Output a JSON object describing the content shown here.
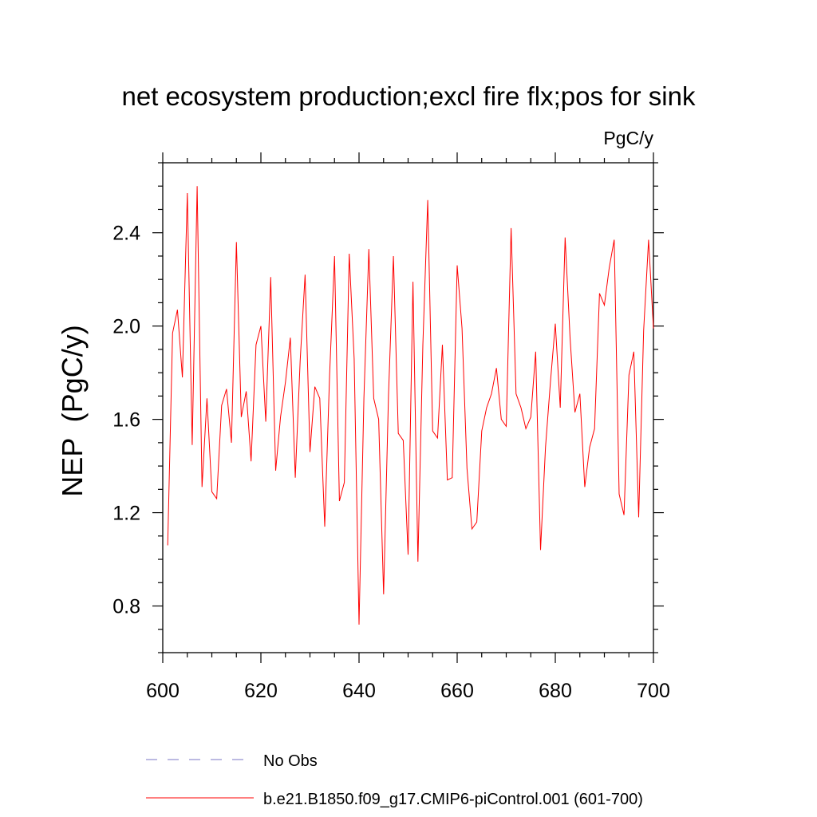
{
  "chart_data": {
    "type": "line",
    "title": "net ecosystem production;excl fire flx;pos for sink",
    "units": "PgC/y",
    "ylabel": "NEP  (PgC/y)",
    "xlabel": "",
    "xlim": [
      600,
      700
    ],
    "ylim": [
      0.6,
      2.7
    ],
    "xticks": [
      600,
      620,
      640,
      660,
      680,
      700
    ],
    "yticks": [
      0.8,
      1.2,
      1.6,
      2.0,
      2.4
    ],
    "xtick_labels": [
      "600",
      "620",
      "640",
      "660",
      "680",
      "700"
    ],
    "ytick_labels": [
      "0.8",
      "1.2",
      "1.6",
      "2.0",
      "2.4"
    ],
    "legend_position": "bottom-left",
    "series": [
      {
        "name": "b.e21.B1850.f09_g17.CMIP6-piControl.001 (601-700)",
        "color": "#ff0000",
        "dash": "solid",
        "x": [
          601,
          602,
          603,
          604,
          605,
          606,
          607,
          608,
          609,
          610,
          611,
          612,
          613,
          614,
          615,
          616,
          617,
          618,
          619,
          620,
          621,
          622,
          623,
          624,
          625,
          626,
          627,
          628,
          629,
          630,
          631,
          632,
          633,
          634,
          635,
          636,
          637,
          638,
          639,
          640,
          641,
          642,
          643,
          644,
          645,
          646,
          647,
          648,
          649,
          650,
          651,
          652,
          653,
          654,
          655,
          656,
          657,
          658,
          659,
          660,
          661,
          662,
          663,
          664,
          665,
          666,
          667,
          668,
          669,
          670,
          671,
          672,
          673,
          674,
          675,
          676,
          677,
          678,
          679,
          680,
          681,
          682,
          683,
          684,
          685,
          686,
          687,
          688,
          689,
          690,
          691,
          692,
          693,
          694,
          695,
          696,
          697,
          698,
          699,
          700
        ],
        "values": [
          1.06,
          1.97,
          2.07,
          1.78,
          2.57,
          1.49,
          2.6,
          1.31,
          1.69,
          1.29,
          1.26,
          1.66,
          1.73,
          1.5,
          2.36,
          1.61,
          1.72,
          1.42,
          1.92,
          2.0,
          1.59,
          2.21,
          1.38,
          1.61,
          1.76,
          1.95,
          1.35,
          1.85,
          2.22,
          1.46,
          1.74,
          1.69,
          1.14,
          1.79,
          2.3,
          1.25,
          1.33,
          2.31,
          1.86,
          0.72,
          1.69,
          2.33,
          1.69,
          1.6,
          0.85,
          1.7,
          2.3,
          1.54,
          1.51,
          1.02,
          2.19,
          0.99,
          1.92,
          2.54,
          1.55,
          1.52,
          1.92,
          1.34,
          1.35,
          2.26,
          1.99,
          1.39,
          1.13,
          1.16,
          1.55,
          1.65,
          1.71,
          1.82,
          1.6,
          1.57,
          2.42,
          1.71,
          1.65,
          1.56,
          1.61,
          1.89,
          1.04,
          1.48,
          1.76,
          2.01,
          1.65,
          2.38,
          1.95,
          1.63,
          1.71,
          1.31,
          1.48,
          1.56,
          2.14,
          2.09,
          2.25,
          2.37,
          1.28,
          1.19,
          1.79,
          1.89,
          1.18,
          1.98,
          2.37,
          1.99
        ]
      },
      {
        "name": "No Obs",
        "color": "#7a74c4",
        "dash": "dashed",
        "x": [],
        "values": []
      }
    ]
  }
}
